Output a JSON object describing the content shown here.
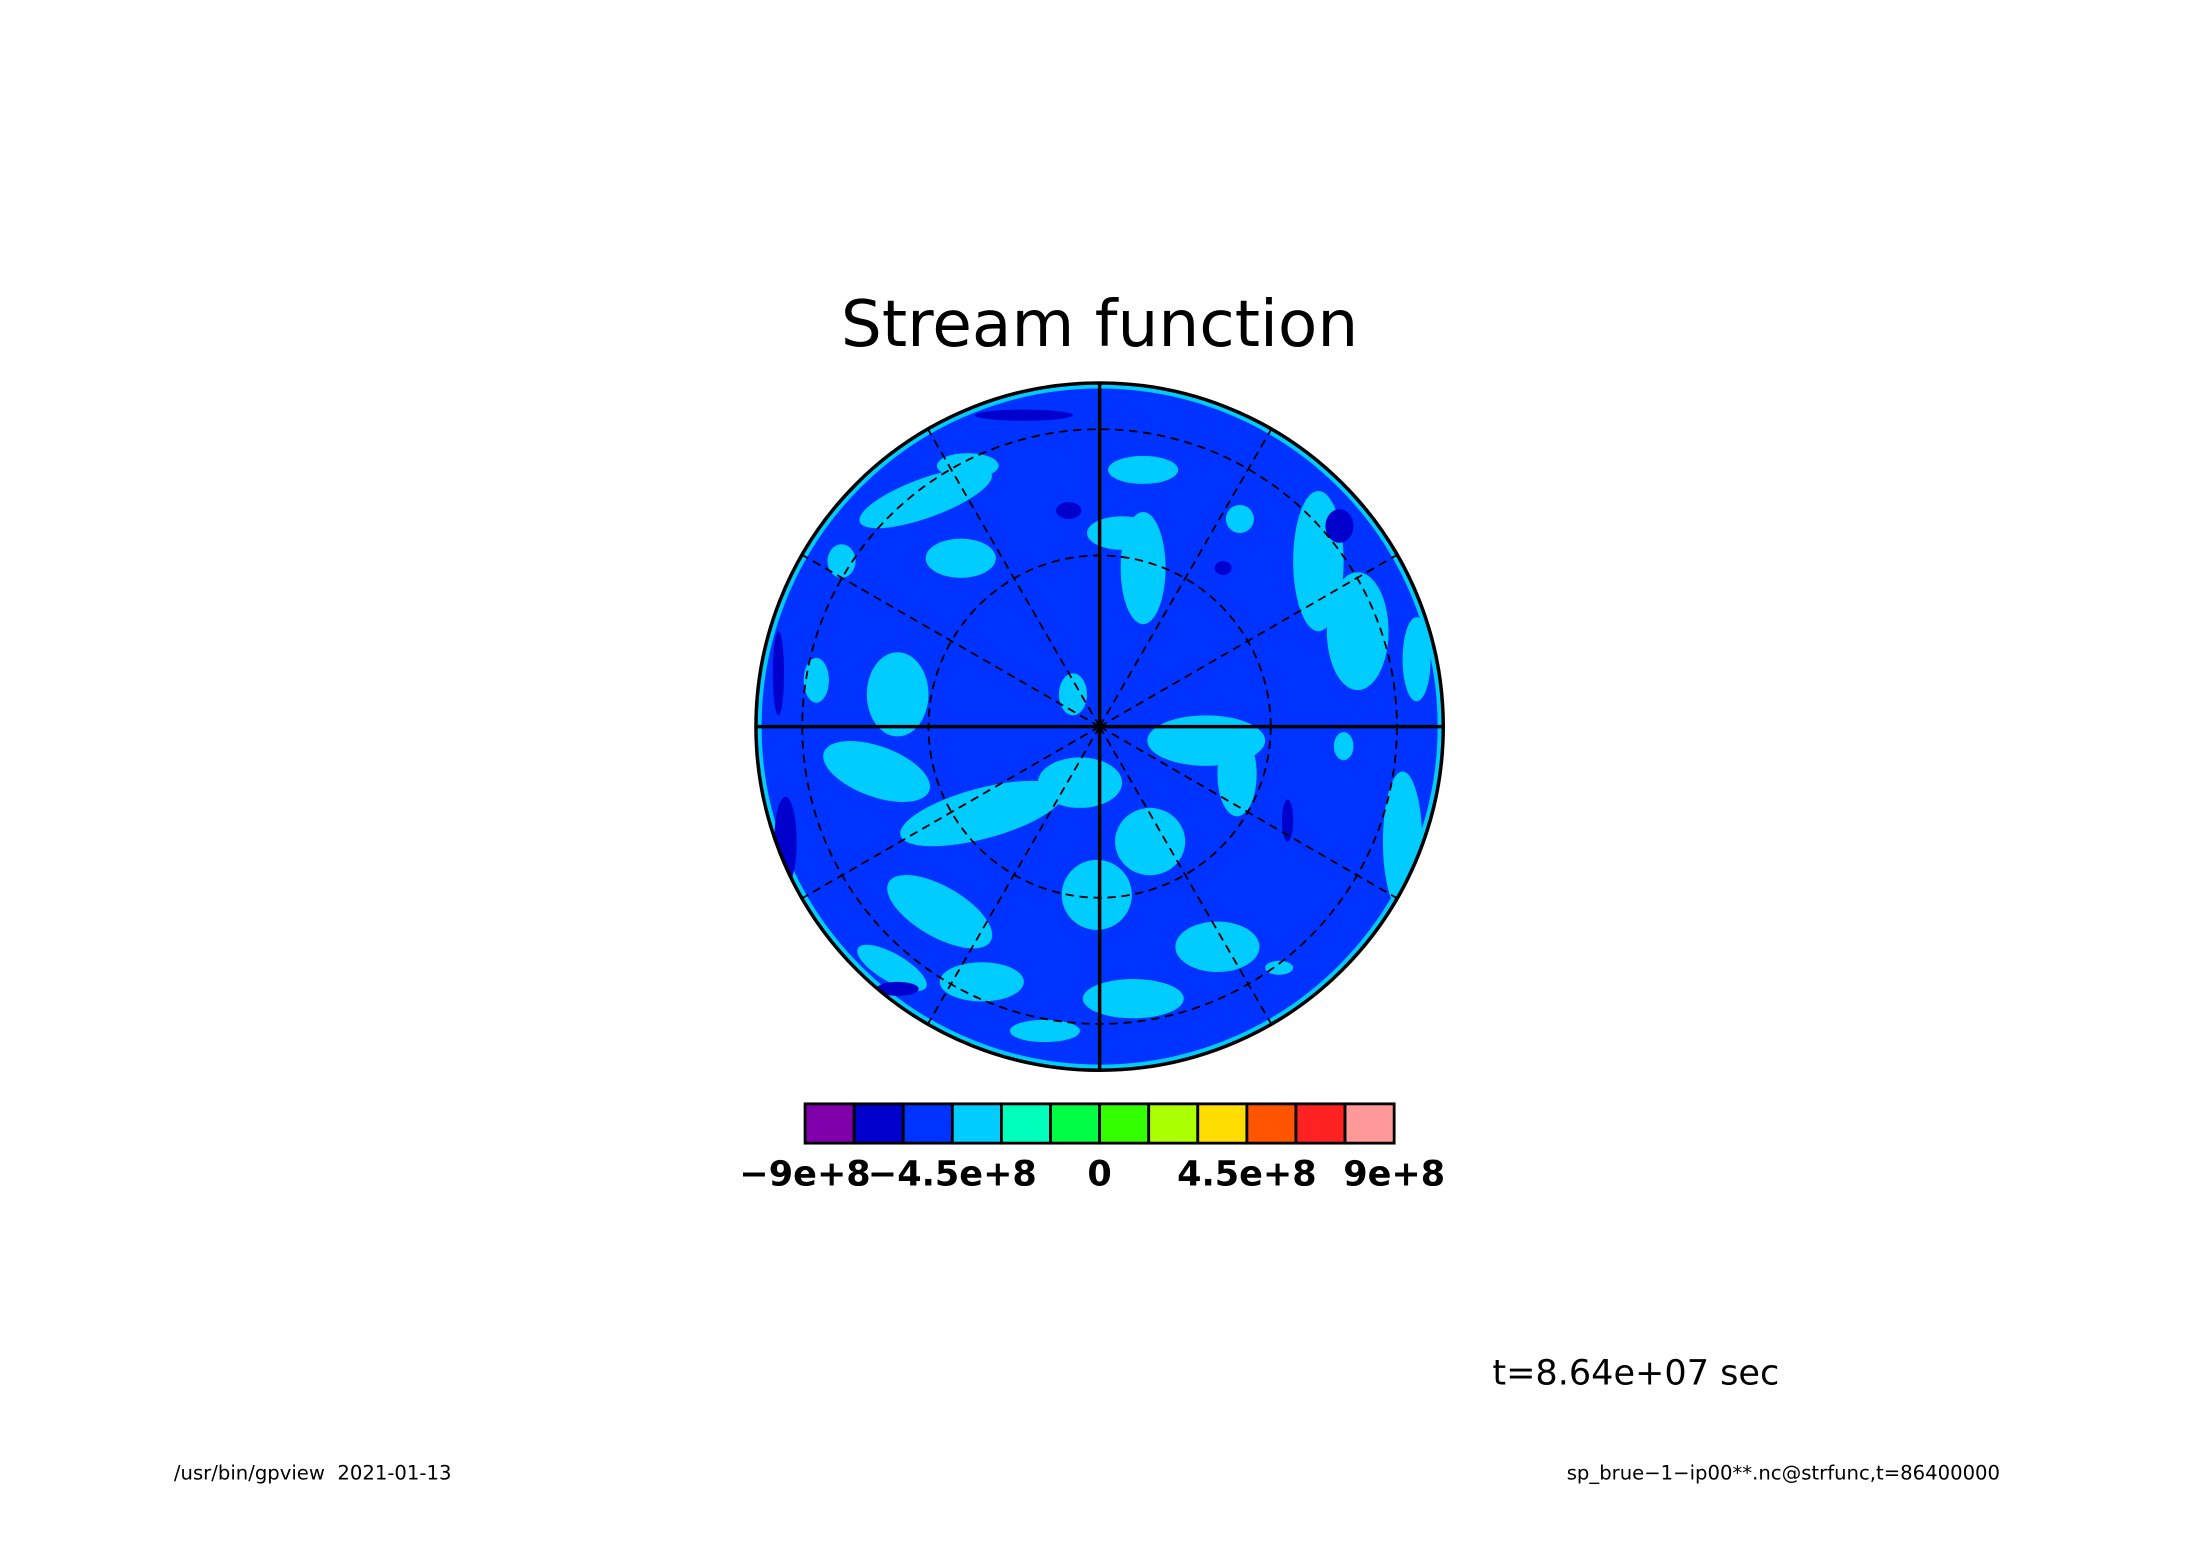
{
  "chart_data": {
    "type": "polar-contour",
    "title": "Stream function",
    "colorbar": {
      "bounds": [
        -900000000,
        -750000000,
        -600000000,
        -450000000,
        -300000000,
        -150000000,
        0,
        150000000,
        300000000,
        450000000,
        600000000,
        750000000,
        900000000
      ],
      "colors": [
        "#7f00aa",
        "#0000cc",
        "#0033ff",
        "#00ccff",
        "#00ffbb",
        "#00ff44",
        "#33ff00",
        "#aaff00",
        "#ffdd00",
        "#ff5500",
        "#ff2222",
        "#ff9999"
      ],
      "lim": [
        -900000000,
        900000000
      ],
      "ticks": [
        {
          "value": -900000000,
          "label": "−9e+8"
        },
        {
          "value": -450000000,
          "label": "−4.5e+8"
        },
        0,
        {
          "value": 450000000,
          "label": "4.5e+8"
        },
        {
          "value": 900000000,
          "label": "9e+8"
        }
      ]
    },
    "time_label": "t=8.64e+07 sec",
    "footer_left": "/usr/bin/gpview  2021-01-13",
    "footer_right": "sp_brue−1−ip00**.nc@strfunc,t=86400000"
  }
}
